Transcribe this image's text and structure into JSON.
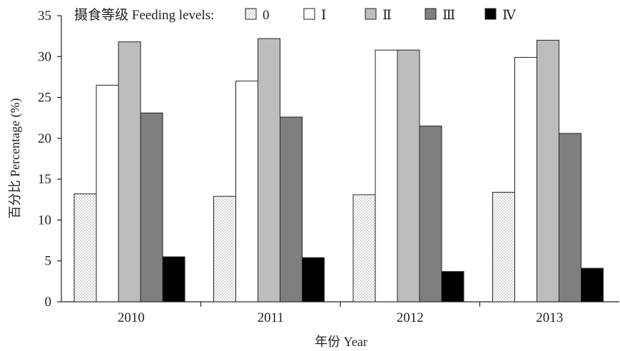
{
  "chart_data": {
    "type": "bar",
    "title": "",
    "xlabel": "年份 Year",
    "ylabel": "百分比 Percentage (%)",
    "ylim": [
      0,
      35
    ],
    "yticks": [
      0,
      5,
      10,
      15,
      20,
      25,
      30,
      35
    ],
    "categories": [
      "2010",
      "2011",
      "2012",
      "2013"
    ],
    "legend": {
      "title": "摄食等级 Feeding levels:",
      "placement": "top"
    },
    "series": [
      {
        "name": "0",
        "values": [
          13.2,
          12.9,
          13.1,
          13.4
        ],
        "fill": "dotted",
        "color": "#ffffff"
      },
      {
        "name": "Ⅰ",
        "values": [
          26.5,
          27.0,
          30.8,
          29.9
        ],
        "fill": "solid",
        "color": "#ffffff"
      },
      {
        "name": "Ⅱ",
        "values": [
          31.8,
          32.2,
          30.8,
          32.0
        ],
        "fill": "solid",
        "color": "#bdbdbd"
      },
      {
        "name": "Ⅲ",
        "values": [
          23.1,
          22.6,
          21.5,
          20.6
        ],
        "fill": "solid",
        "color": "#7f7f7f"
      },
      {
        "name": "Ⅳ",
        "values": [
          5.5,
          5.4,
          3.7,
          4.1
        ],
        "fill": "solid",
        "color": "#000000"
      }
    ]
  }
}
